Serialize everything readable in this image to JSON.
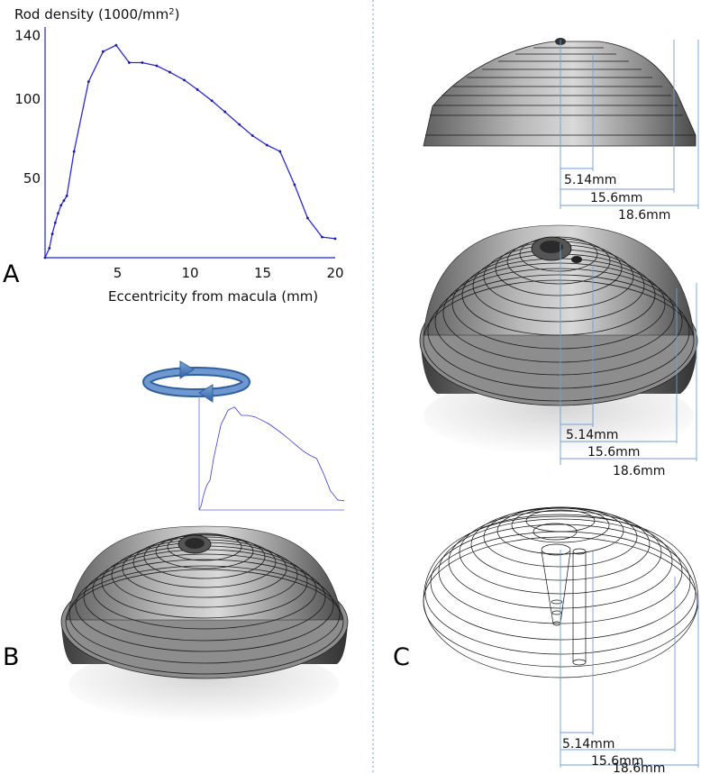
{
  "panel_labels": {
    "a": "A",
    "b": "B",
    "c": "C"
  },
  "chart_data": {
    "type": "line",
    "ylabel_main": "Rod density (1000/mm",
    "ylabel_sup": "2",
    "ylabel_end": ")",
    "xlabel": "Eccentricity from macula (mm)",
    "xlim": [
      0,
      20
    ],
    "ylim": [
      0,
      150
    ],
    "x_ticks": [
      "5",
      "10",
      "15",
      "20"
    ],
    "y_ticks": [
      "50",
      "100",
      "140"
    ],
    "x_tick_values": [
      5,
      10,
      15,
      20
    ],
    "y_tick_values": [
      50,
      100,
      140
    ],
    "series": [
      {
        "x": [
          0,
          0.3,
          0.5,
          0.7,
          0.9,
          1.1,
          1.3,
          1.5,
          2.0,
          3.0,
          4.0,
          4.9,
          5.8,
          6.7,
          7.7,
          8.6,
          9.6,
          10.5,
          11.5,
          12.4,
          13.4,
          14.3,
          15.3,
          16.2,
          17.2,
          18.1,
          19.1,
          20.0
        ],
        "y": [
          0,
          6,
          15,
          22,
          28,
          33,
          36,
          39,
          67,
          111,
          130,
          134,
          123,
          123,
          121,
          117,
          112,
          106,
          99,
          92,
          84,
          77,
          71,
          67,
          46,
          25,
          13,
          12
        ]
      }
    ]
  },
  "dimensions": {
    "labels": [
      "5.14mm",
      "15.6mm",
      "18.6mm"
    ],
    "values": [
      5.14,
      15.6,
      18.6
    ]
  }
}
